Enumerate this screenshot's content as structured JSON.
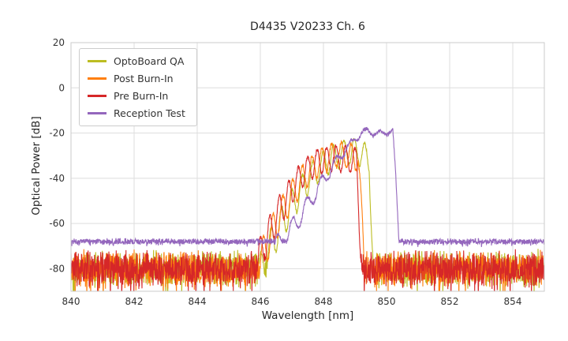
{
  "chart_data": {
    "type": "line",
    "title": "D4435 V20233 Ch. 6",
    "xlabel": "Wavelength [nm]",
    "ylabel": "Optical Power [dB]",
    "xlim": [
      840,
      855
    ],
    "ylim": [
      -90,
      20
    ],
    "xticks": [
      840,
      842,
      844,
      846,
      848,
      850,
      852,
      854
    ],
    "yticks": [
      20,
      0,
      -20,
      -40,
      -60,
      -80
    ],
    "grid": true,
    "grid_color": "#dedede",
    "spine_color": "#cbcbcb",
    "tick_label_color": "#333333",
    "legend_position": "upper-left",
    "series": [
      {
        "name": "OptoBoard QA",
        "color": "#bcbd22",
        "seed": 101,
        "noise_floor": -80,
        "noise_amp": 9,
        "mode_period": 0.33,
        "mode_phase": 0.22,
        "depth_top": 11,
        "depth_edge": 18,
        "envelope": [
          [
            845.95,
            -75
          ],
          [
            846.3,
            -63
          ],
          [
            846.7,
            -52
          ],
          [
            847.1,
            -43
          ],
          [
            847.5,
            -35
          ],
          [
            848.0,
            -28
          ],
          [
            848.5,
            -24
          ],
          [
            848.9,
            -22.5
          ],
          [
            849.25,
            -23.5
          ],
          [
            849.45,
            -27
          ],
          [
            849.6,
            -80
          ]
        ]
      },
      {
        "name": "Post Burn-In",
        "color": "#ff7f0e",
        "seed": 202,
        "noise_floor": -80,
        "noise_amp": 9,
        "mode_period": 0.31,
        "mode_phase": 0.1,
        "depth_top": 11,
        "depth_edge": 18,
        "envelope": [
          [
            845.85,
            -74
          ],
          [
            846.2,
            -62
          ],
          [
            846.6,
            -50
          ],
          [
            847.0,
            -41
          ],
          [
            847.4,
            -33
          ],
          [
            847.9,
            -27
          ],
          [
            848.4,
            -24
          ],
          [
            848.8,
            -24.5
          ],
          [
            849.1,
            -26
          ],
          [
            849.35,
            -80
          ]
        ]
      },
      {
        "name": "Pre Burn-In",
        "color": "#d62728",
        "seed": 303,
        "noise_floor": -80,
        "noise_amp": 9,
        "mode_period": 0.3,
        "mode_phase": 0.0,
        "depth_top": 11,
        "depth_edge": 18,
        "envelope": [
          [
            845.8,
            -73
          ],
          [
            846.15,
            -61
          ],
          [
            846.55,
            -49
          ],
          [
            846.95,
            -40
          ],
          [
            847.35,
            -32
          ],
          [
            847.8,
            -27.5
          ],
          [
            848.3,
            -25.5
          ],
          [
            848.7,
            -26
          ],
          [
            849.05,
            -27
          ],
          [
            849.25,
            -80
          ]
        ]
      },
      {
        "name": "Reception Test",
        "color": "#9467bd",
        "seed": 404,
        "noise_floor": -68,
        "noise_amp": 1.6,
        "mode_period": 0.46,
        "mode_phase": 0.15,
        "depth_top": 2.5,
        "depth_edge": 11,
        "envelope": [
          [
            846.4,
            -67
          ],
          [
            846.9,
            -60
          ],
          [
            847.3,
            -52
          ],
          [
            847.7,
            -44
          ],
          [
            848.1,
            -36
          ],
          [
            848.6,
            -27
          ],
          [
            849.0,
            -21
          ],
          [
            849.4,
            -17.5
          ],
          [
            849.7,
            -19.5
          ],
          [
            849.95,
            -18
          ],
          [
            850.2,
            -18.5
          ],
          [
            850.3,
            -40
          ],
          [
            850.42,
            -68
          ]
        ]
      }
    ]
  }
}
